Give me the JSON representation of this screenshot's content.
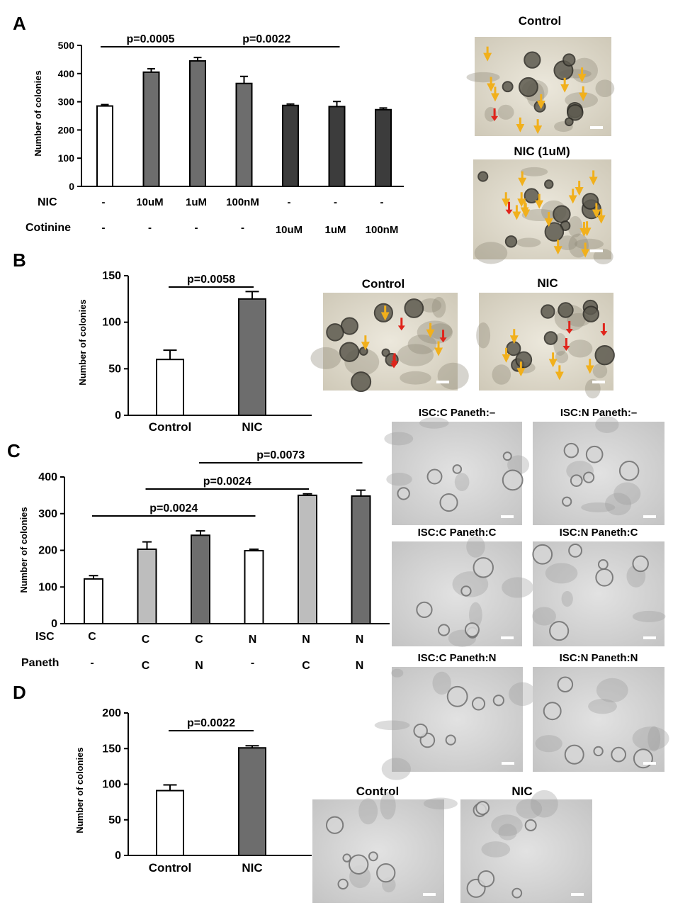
{
  "panels": {
    "A": {
      "label": "A",
      "micrographs": {
        "top": "Control",
        "bottom": "NIC (1uM)"
      }
    },
    "B": {
      "label": "B",
      "micrographs": {
        "left": "Control",
        "right": "NIC"
      }
    },
    "C": {
      "label": "C",
      "micrographs": {
        "r1c1": "ISC:C Paneth:–",
        "r1c2": "ISC:N Paneth:–",
        "r2c1": "ISC:C Paneth:C",
        "r2c2": "ISC:N Paneth:C",
        "r3c1": "ISC:C Paneth:N",
        "r3c2": "ISC:N Paneth:N"
      }
    },
    "D": {
      "label": "D",
      "micrographs": {
        "left": "Control",
        "right": "NIC"
      }
    }
  },
  "chart_data": [
    {
      "panel": "A",
      "type": "bar",
      "ylabel": "Number of colonies",
      "ylim": [
        0,
        500
      ],
      "yticks": [
        "0",
        "100",
        "200",
        "300",
        "400",
        "500"
      ],
      "categories": [
        {
          "row1": "-",
          "row2": "-"
        },
        {
          "row1": "10uM",
          "row2": "-"
        },
        {
          "row1": "1uM",
          "row2": "-"
        },
        {
          "row1": "100nM",
          "row2": "-"
        },
        {
          "row1": "-",
          "row2": "10uM"
        },
        {
          "row1": "-",
          "row2": "1uM"
        },
        {
          "row1": "-",
          "row2": "100nM"
        }
      ],
      "row_labels": {
        "row1": "NIC",
        "row2": "Cotinine"
      },
      "values": [
        285,
        405,
        445,
        365,
        287,
        283,
        272
      ],
      "errors": [
        5,
        12,
        12,
        25,
        5,
        18,
        6
      ],
      "colors": [
        "#ffffff",
        "#6d6d6d",
        "#6d6d6d",
        "#6d6d6d",
        "#3c3c3c",
        "#3c3c3c",
        "#3c3c3c"
      ],
      "comparisons": [
        {
          "text": "p=0.0005",
          "from": 0,
          "to": 2
        },
        {
          "text": "p=0.0022",
          "from": 2,
          "to": 5
        }
      ]
    },
    {
      "panel": "B",
      "type": "bar",
      "ylabel": "Number of colonies",
      "ylim": [
        0,
        150
      ],
      "yticks": [
        "0",
        "50",
        "100",
        "150"
      ],
      "categories": [
        "Control",
        "NIC"
      ],
      "values": [
        60,
        125
      ],
      "errors": [
        10,
        8
      ],
      "colors": [
        "#ffffff",
        "#6d6d6d"
      ],
      "comparisons": [
        {
          "text": "p=0.0058",
          "from": 0,
          "to": 1
        }
      ]
    },
    {
      "panel": "C",
      "type": "bar",
      "ylabel": "Number of colonies",
      "ylim": [
        0,
        400
      ],
      "yticks": [
        "0",
        "100",
        "200",
        "300",
        "400"
      ],
      "categories": [
        {
          "row1": "C",
          "row2": "-"
        },
        {
          "row1": "C",
          "row2": "C"
        },
        {
          "row1": "C",
          "row2": "N"
        },
        {
          "row1": "N",
          "row2": "-"
        },
        {
          "row1": "N",
          "row2": "C"
        },
        {
          "row1": "N",
          "row2": "N"
        }
      ],
      "row_labels": {
        "row1": "ISC",
        "row2": "Paneth"
      },
      "values": [
        122,
        203,
        241,
        199,
        350,
        348
      ],
      "errors": [
        9,
        20,
        12,
        4,
        4,
        16
      ],
      "colors": [
        "#ffffff",
        "#bdbdbd",
        "#6d6d6d",
        "#ffffff",
        "#bdbdbd",
        "#6d6d6d"
      ],
      "comparisons": [
        {
          "text": "p=0.0024",
          "from": 0,
          "to": 3
        },
        {
          "text": "p=0.0024",
          "from": 1,
          "to": 4
        },
        {
          "text": "p=0.0073",
          "from": 2,
          "to": 5
        }
      ]
    },
    {
      "panel": "D",
      "type": "bar",
      "ylabel": "Number of colonies",
      "ylim": [
        0,
        200
      ],
      "yticks": [
        "0",
        "50",
        "100",
        "150",
        "200"
      ],
      "categories": [
        "Control",
        "NIC"
      ],
      "values": [
        91,
        151
      ],
      "errors": [
        8,
        3
      ],
      "colors": [
        "#ffffff",
        "#6d6d6d"
      ],
      "comparisons": [
        {
          "text": "p=0.0022",
          "from": 0,
          "to": 1
        }
      ]
    }
  ]
}
